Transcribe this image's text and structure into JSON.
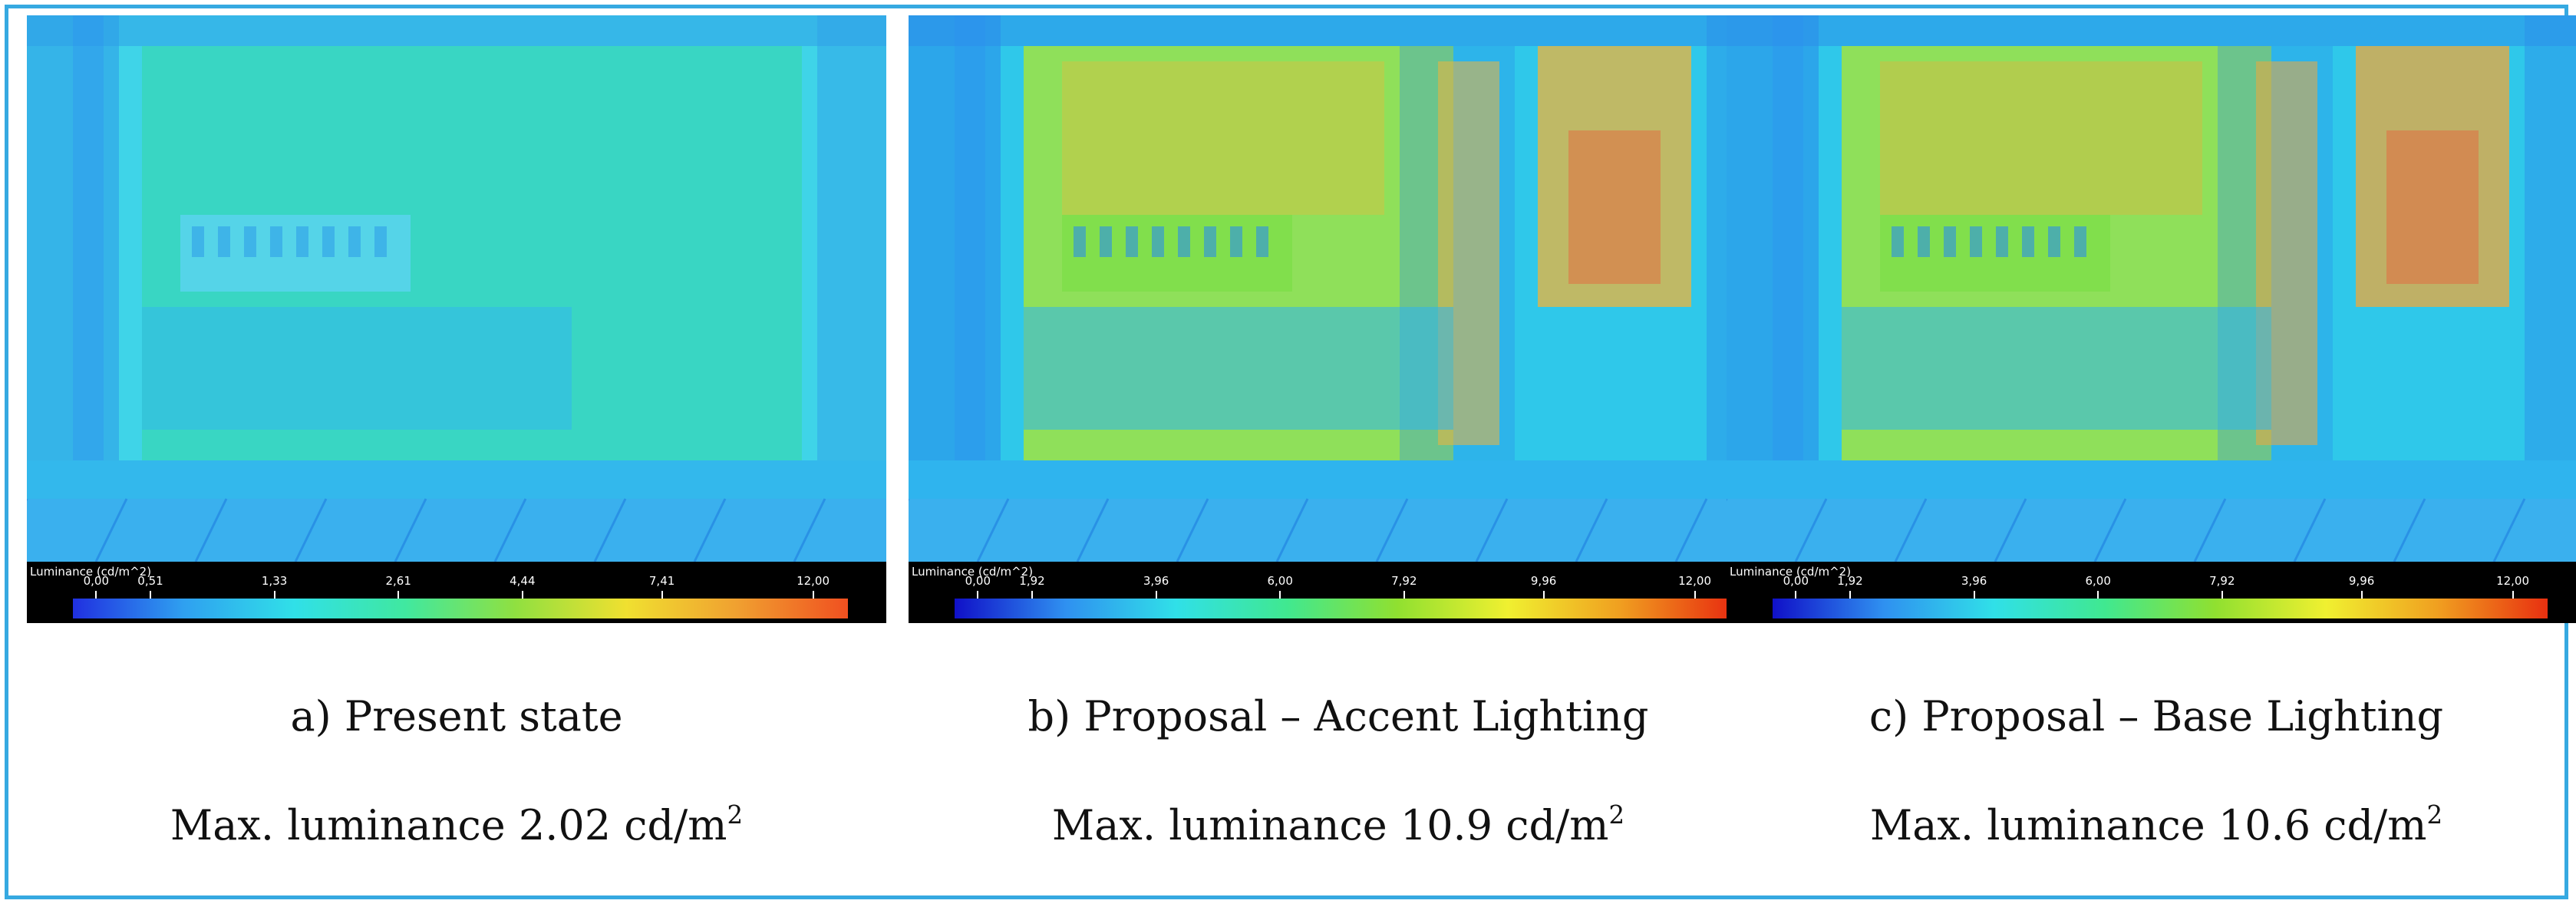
{
  "panels": [
    {
      "id": "a",
      "caption": "a) Present state",
      "max_label": "Max. luminance 2.02 cd/m",
      "max_unit_sup": "2",
      "scale_title": "Luminance (cd/m^2)",
      "ticks": [
        "0,00",
        "0,51",
        "1,33",
        "2,61",
        "4,44",
        "7,41",
        "12,00"
      ],
      "colors": {
        "bg": "#3fd4e8",
        "wall": "#39d6c3",
        "frame": "#2f9fe8",
        "building": "#5ad4ee",
        "floor": "#33b8ec",
        "accent": "#4fe1b8"
      }
    },
    {
      "id": "b",
      "caption": "b) Proposal – Accent Lighting",
      "max_label": "Max. luminance 10.9 cd/m",
      "max_unit_sup": "2",
      "scale_title": "Luminance (cd/m^2)",
      "ticks": [
        "0,00",
        "1,92",
        "3,96",
        "6,00",
        "7,92",
        "9,96",
        "12,00"
      ],
      "colors": {
        "bg": "#2fc8ea",
        "wall": "#8fe05a",
        "frame": "#2c8fea",
        "building": "#7fde4a",
        "floor": "#2fb4ee",
        "accent": "#f0b43a"
      }
    },
    {
      "id": "c",
      "caption": "c) Proposal – Base Lighting",
      "max_label": "Max. luminance 10.6 cd/m",
      "max_unit_sup": "2",
      "scale_title": "Luminance (cd/m^2)",
      "ticks": [
        "0,00",
        "1,92",
        "3,96",
        "6,00",
        "7,92",
        "9,96",
        "12,00"
      ],
      "colors": {
        "bg": "#2fc8ea",
        "wall": "#8fe05a",
        "frame": "#2c8fea",
        "building": "#7fde4a",
        "floor": "#2fb4ee",
        "accent": "#f0a83a"
      }
    }
  ]
}
